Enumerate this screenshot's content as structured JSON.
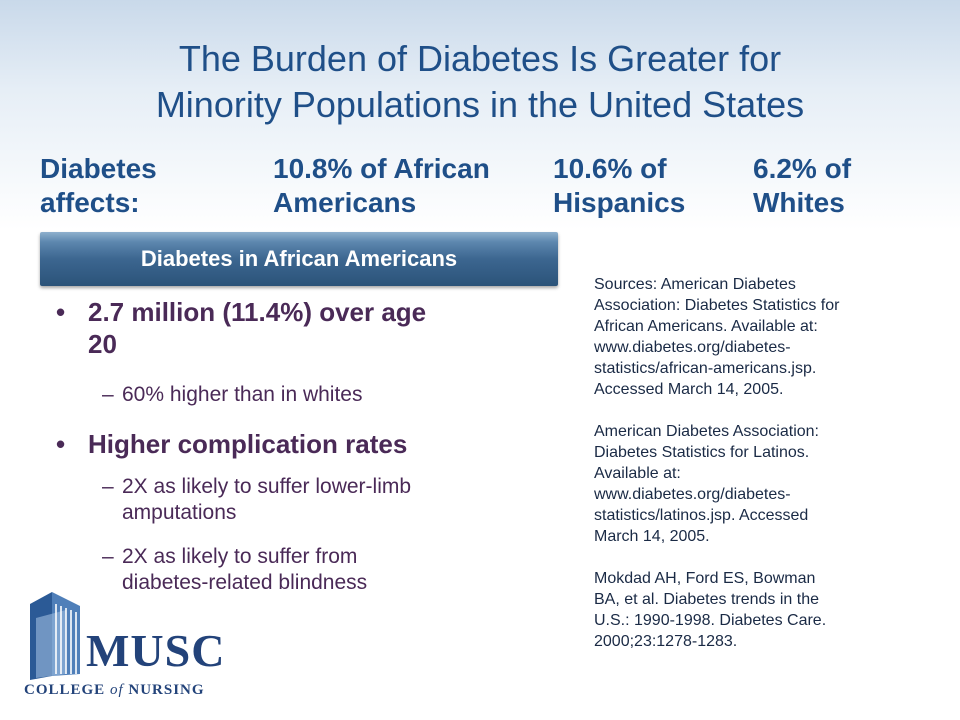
{
  "title": {
    "line1": "The Burden of Diabetes Is Greater for",
    "line2": "Minority Populations in the United States"
  },
  "stats": {
    "label": [
      "Diabetes",
      "affects:"
    ],
    "african_americans": [
      "10.8% of African",
      "Americans"
    ],
    "hispanics": [
      "10.6% of",
      "Hispanics"
    ],
    "whites": [
      "6.2% of",
      "Whites"
    ]
  },
  "banner": "Diabetes in African Americans",
  "bullets": {
    "b1": {
      "line1": "2.7 million (11.4%) over age",
      "line2": "20"
    },
    "b1_sub": "60% higher than in whites",
    "b2": "Higher complication rates",
    "b2_sub1": {
      "line1": "2X as likely to suffer lower-limb",
      "line2": "amputations"
    },
    "b2_sub2": {
      "line1": "2X as likely to suffer from",
      "line2": "diabetes-related blindness"
    }
  },
  "sources": {
    "s1": [
      "Sources: American Diabetes",
      "Association: Diabetes Statistics for",
      "African Americans. Available at:",
      "www.diabetes.org/diabetes-",
      "statistics/african-americans.jsp.",
      "Accessed March 14, 2005."
    ],
    "s2": [
      "American Diabetes Association:",
      "Diabetes Statistics for Latinos.",
      "Available at:",
      "www.diabetes.org/diabetes-",
      "statistics/latinos.jsp. Accessed",
      "March 14, 2005."
    ],
    "s3": [
      "Mokdad AH, Ford ES, Bowman",
      "BA, et al. Diabetes trends in the",
      "U.S.: 1990-1998.  Diabetes Care.",
      "2000;23:1278-1283."
    ]
  },
  "logo": {
    "name": "MUSC",
    "sub_pre": "COLLEGE ",
    "sub_of": "of",
    "sub_post": " NURSING"
  },
  "colors": {
    "title": "#1f4f88",
    "bullets": "#4a2a57",
    "banner": "#3c6690"
  }
}
